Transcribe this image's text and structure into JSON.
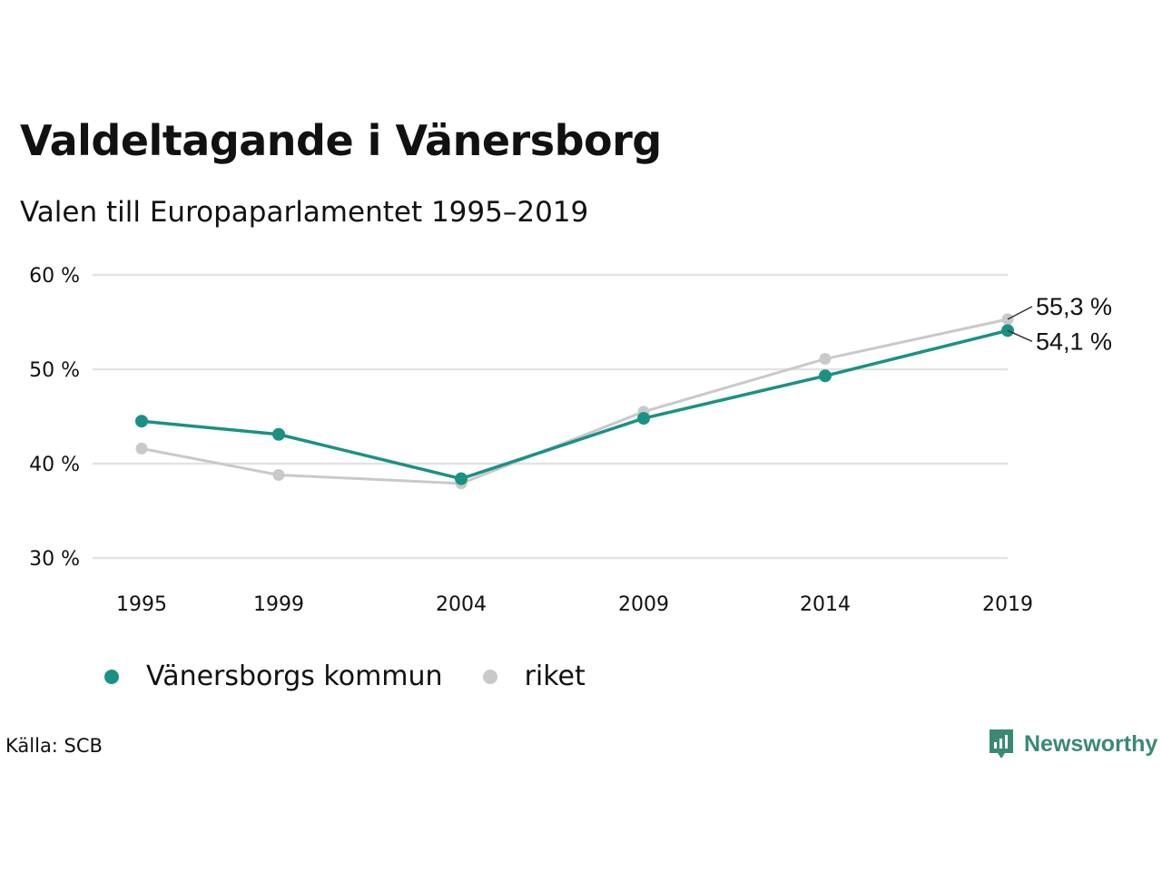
{
  "title": "Valdeltagande i Vänersborg",
  "subtitle": "Valen till Europaparlamentet 1995–2019",
  "source": "Källa: SCB",
  "brand": {
    "name": "Newsworthy",
    "icon": "newsworthy-logo-icon",
    "color": "#3a8a73"
  },
  "chart_data": {
    "type": "line",
    "title": "Valdeltagande i Vänersborg",
    "subtitle": "Valen till Europaparlamentet 1995–2019",
    "x": [
      "1995",
      "1999",
      "2004",
      "2009",
      "2014",
      "2019"
    ],
    "yticks": [
      "30 %",
      "40 %",
      "50 %",
      "60 %"
    ],
    "ylim": [
      30,
      60
    ],
    "grid": true,
    "legend": "bottom-left",
    "series": [
      {
        "name": "riket",
        "color": "#c9c9c9",
        "values": [
          41.6,
          38.8,
          37.9,
          45.5,
          51.1,
          55.3
        ],
        "end_label": "55,3 %"
      },
      {
        "name": "Vänersborgs kommun",
        "color": "#1a9183",
        "values": [
          44.5,
          43.1,
          38.4,
          44.8,
          49.3,
          54.1
        ],
        "end_label": "54,1 %"
      }
    ]
  }
}
